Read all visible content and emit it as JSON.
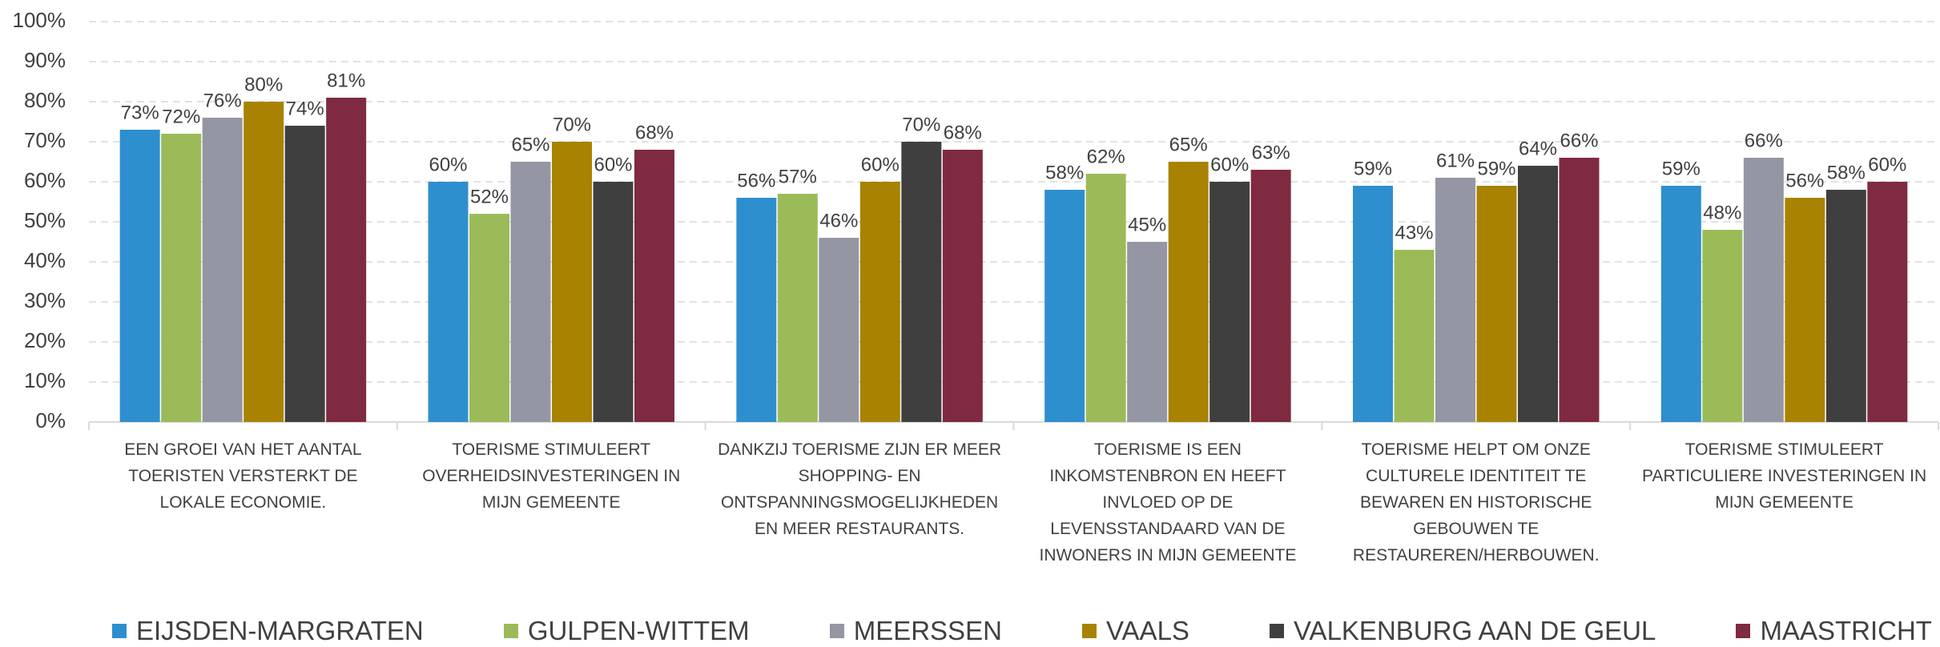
{
  "chart_data": {
    "type": "bar",
    "categories": [
      "EEN GROEI VAN HET AANTAL TOERISTEN VERSTERKT DE LOKALE ECONOMIE.",
      "TOERISME STIMULEERT OVERHEIDSINVESTERINGEN IN MIJN GEMEENTE",
      "DANKZIJ TOERISME ZIJN ER MEER SHOPPING- EN ONTSPANNINGSMOGELIJKHEDEN EN MEER RESTAURANTS.",
      "TOERISME IS EEN INKOMSTENBRON EN HEEFT INVLOED OP DE LEVENSSTANDAARD VAN DE INWONERS IN MIJN GEMEENTE",
      "TOERISME HELPT OM ONZE CULTURELE IDENTITEIT TE BEWAREN EN HISTORISCHE GEBOUWEN TE RESTAUREREN/HERBOUWEN.",
      "TOERISME STIMULEERT PARTICULIERE INVESTERINGEN IN MIJN GEMEENTE"
    ],
    "series": [
      {
        "name": "EIJSDEN-MARGRATEN",
        "color": "#2e8fce",
        "values": [
          73,
          60,
          56,
          58,
          59,
          59
        ],
        "value_labels": [
          "73%",
          "60%",
          "56%",
          "58%",
          "59%",
          "59%"
        ]
      },
      {
        "name": "GULPEN-WITTEM",
        "color": "#9bbb59",
        "values": [
          72,
          52,
          57,
          62,
          43,
          48
        ],
        "value_labels": [
          "72%",
          "52%",
          "57%",
          "62%",
          "43%",
          "48%"
        ]
      },
      {
        "name": "MEERSSEN",
        "color": "#9496a3",
        "values": [
          76,
          65,
          46,
          45,
          61,
          66
        ],
        "value_labels": [
          "76%",
          "65%",
          "46%",
          "45%",
          "61%",
          "66%"
        ]
      },
      {
        "name": "VAALS",
        "color": "#a88200",
        "values": [
          80,
          70,
          60,
          65,
          59,
          56
        ],
        "value_labels": [
          "80%",
          "70%",
          "60%",
          "65%",
          "59%",
          "56%"
        ]
      },
      {
        "name": "VALKENBURG AAN DE GEUL",
        "color": "#3f3f3f",
        "values": [
          74,
          60,
          70,
          60,
          64,
          58
        ],
        "value_labels": [
          "74%",
          "60%",
          "70%",
          "60%",
          "64%",
          "58%"
        ]
      },
      {
        "name": "MAASTRICHT",
        "color": "#7f2a41",
        "values": [
          81,
          68,
          68,
          63,
          66,
          60
        ],
        "value_labels": [
          "81%",
          "68%",
          "68%",
          "63%",
          "66%",
          "60%"
        ]
      }
    ],
    "ylim": [
      0,
      100
    ],
    "yticks": [
      {
        "value": 0,
        "label": "0%"
      },
      {
        "value": 10,
        "label": "10%"
      },
      {
        "value": 20,
        "label": "20%"
      },
      {
        "value": 30,
        "label": "30%"
      },
      {
        "value": 40,
        "label": "40%"
      },
      {
        "value": 50,
        "label": "50%"
      },
      {
        "value": 60,
        "label": "60%"
      },
      {
        "value": 70,
        "label": "70%"
      },
      {
        "value": 80,
        "label": "80%"
      },
      {
        "value": 90,
        "label": "90%"
      },
      {
        "value": 100,
        "label": "100%"
      }
    ],
    "grid": true,
    "legend": "bottom"
  }
}
